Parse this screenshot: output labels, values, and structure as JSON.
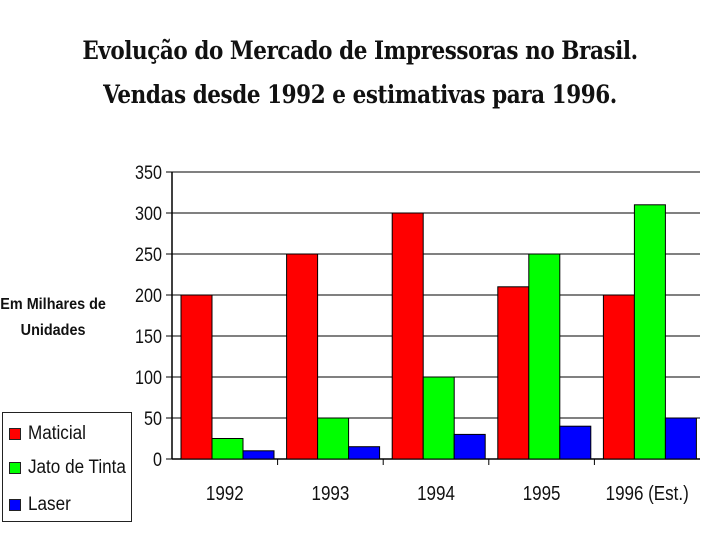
{
  "header": {
    "title_line1": "Evolução do Mercado de Impressoras no Brasil.",
    "title_line2": "Vendas desde 1992 e estimativas para 1996."
  },
  "chart_data": {
    "type": "bar",
    "title": "Evolução do Mercado de Impressoras no Brasil. Vendas desde 1992 e estimativas para 1996.",
    "ylabel": "Em Milhares de Unidades",
    "xlabel": "",
    "categories": [
      "1992",
      "1993",
      "1994",
      "1995",
      "1996 (Est.)"
    ],
    "series": [
      {
        "name": "Maticial",
        "color": "#ff0000",
        "values": [
          200,
          250,
          300,
          210,
          200
        ]
      },
      {
        "name": "Jato de Tinta",
        "color": "#00ff00",
        "values": [
          25,
          50,
          100,
          250,
          310
        ]
      },
      {
        "name": "Laser",
        "color": "#0000ff",
        "values": [
          10,
          15,
          30,
          40,
          50
        ]
      }
    ],
    "ylim": [
      0,
      350
    ],
    "yticks": [
      0,
      50,
      100,
      150,
      200,
      250,
      300,
      350
    ],
    "grid": true,
    "legend_position": "bottom-left"
  }
}
